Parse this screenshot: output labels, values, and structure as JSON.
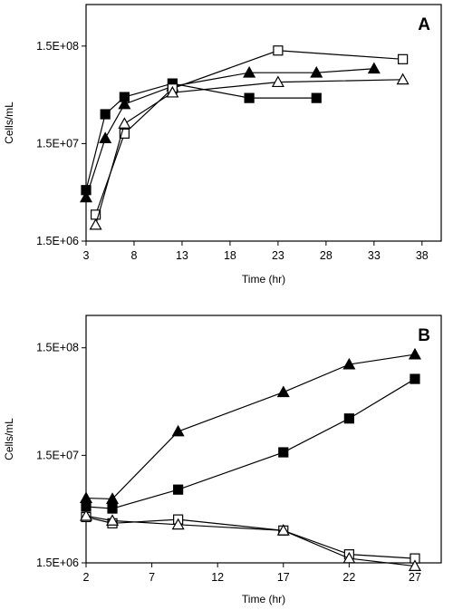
{
  "chart_data": [
    {
      "type": "scatter",
      "panel_label": "A",
      "xlabel": "Time (hr)",
      "ylabel": "Cells/mL",
      "x_ticks": [
        3,
        8,
        13,
        18,
        23,
        28,
        33,
        38
      ],
      "y_ticks": [
        1500000,
        15000000,
        150000000
      ],
      "y_tick_labels": [
        "1.5E+06",
        "1.5E+07",
        "1.5E+08"
      ],
      "xlim": [
        3,
        40
      ],
      "ylim": [
        1500000,
        400000000
      ],
      "y_scale": "log",
      "grid": false,
      "series": [
        {
          "marker": "filled-square",
          "x": [
            3,
            5,
            7,
            12,
            20,
            27
          ],
          "y": [
            5000000,
            30000000,
            45000000,
            62000000,
            44000000,
            44000000
          ]
        },
        {
          "marker": "filled-triangle",
          "x": [
            3,
            5,
            7,
            12,
            20,
            27,
            33
          ],
          "y": [
            4200000,
            17000000,
            38000000,
            58000000,
            80000000,
            80000000,
            88000000
          ]
        },
        {
          "marker": "open-square",
          "x": [
            4,
            7,
            12,
            23,
            36
          ],
          "y": [
            2800000,
            19000000,
            55000000,
            135000000,
            110000000
          ]
        },
        {
          "marker": "open-triangle",
          "x": [
            4,
            7,
            12,
            23,
            36
          ],
          "y": [
            2200000,
            24000000,
            50000000,
            64000000,
            68000000
          ]
        }
      ]
    },
    {
      "type": "scatter",
      "panel_label": "B",
      "xlabel": "Time (hr)",
      "ylabel": "Cells/mL",
      "x_ticks": [
        2,
        7,
        12,
        17,
        22,
        27
      ],
      "y_ticks": [
        1500000,
        15000000,
        150000000
      ],
      "y_tick_labels": [
        "1.5E+06",
        "1.5E+07",
        "1.5E+08"
      ],
      "xlim": [
        2,
        29
      ],
      "ylim": [
        1500000,
        300000000
      ],
      "y_scale": "log",
      "grid": false,
      "series": [
        {
          "marker": "filled-triangle",
          "x": [
            2,
            4,
            9,
            17,
            22,
            27
          ],
          "y": [
            6000000,
            5900000,
            25000000,
            58000000,
            105000000,
            130000000
          ]
        },
        {
          "marker": "filled-square",
          "x": [
            2,
            4,
            9,
            17,
            22,
            27
          ],
          "y": [
            5000000,
            4800000,
            7200000,
            16000000,
            33000000,
            77000000
          ]
        },
        {
          "marker": "open-square",
          "x": [
            2,
            4,
            9,
            17,
            22,
            27
          ],
          "y": [
            4000000,
            3500000,
            3800000,
            3000000,
            1800000,
            1650000
          ]
        },
        {
          "marker": "open-triangle",
          "x": [
            2,
            4,
            9,
            17,
            22,
            27
          ],
          "y": [
            4100000,
            3700000,
            3400000,
            3000000,
            1650000,
            1400000
          ]
        }
      ]
    }
  ]
}
